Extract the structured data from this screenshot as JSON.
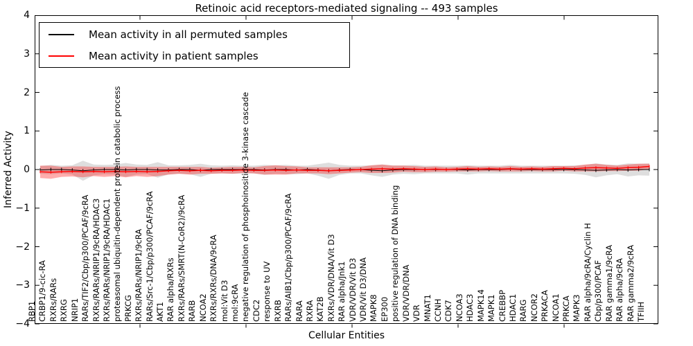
{
  "title": "Retinoic acid receptors-mediated signaling -- 493 samples",
  "axes": {
    "xlabel": "Cellular Entities",
    "ylabel": "Inferred Activity",
    "ylim": [
      -4,
      4
    ],
    "yticks": [
      4,
      3,
      2,
      1,
      0,
      -1,
      -2,
      -3,
      -4
    ]
  },
  "legend": {
    "items": [
      {
        "label": "Mean activity in all permuted samples",
        "color": "#000000"
      },
      {
        "label": "Mean activity in patient samples",
        "color": "#ff0000"
      }
    ]
  },
  "colors": {
    "permuted_line": "#000000",
    "patient_line": "#ff0000",
    "permuted_band": "#000000",
    "patient_band": "#ff0000",
    "frame": "#000000",
    "background": "#ffffff"
  },
  "chart_data": {
    "type": "line",
    "title": "Retinoic acid receptors-mediated signaling -- 493 samples",
    "xlabel": "Cellular Entities",
    "ylabel": "Inferred Activity",
    "ylim": [
      -4,
      4
    ],
    "grid": false,
    "legend_position": "upper left",
    "categories": [
      "RBP1",
      "CRBP1/9-cic-RA",
      "RXRs/RARs",
      "RXRG",
      "NRIP1",
      "RARs/TIF2/Cbp/p300/PCAF/9cRA",
      "RXRs/RARs/NRIP1/9cRA/HDAC3",
      "RXRs/RARs/NRIP1/9cRA/HDAC1",
      "proteasomal ubiquitin-dependent protein catabolic process",
      "PRKCG",
      "RXRs/RARs/NRIP1/9cRA",
      "RARs/Src-1/Cbp/p300/PCAF/9cRA",
      "AKT1",
      "RAR alpha/RXRs",
      "RXRs/RARs/SMRT(N-CoR2)/9cRA",
      "RARB",
      "NCOA2",
      "RXRs/RXRs/DNA/9cRA",
      "mol:Vit D3",
      "mol:9cRA",
      "negative regulation of phosphoinositide 3-kinase cascade",
      "CDC2",
      "response to UV",
      "RXRB",
      "RARs/AIB1/Cbp/p300/PCAF/9cRA",
      "RARA",
      "RXRA",
      "KAT2B",
      "RXRs/VDR/DNA/Vit D3",
      "RAR alpha/Jnk1",
      "VDR/VDR/Vit D3",
      "VDR/Vit D3/DNA",
      "MAPK8",
      "EP300",
      "positive regulation of DNA binding",
      "VDR/VDR/DNA",
      "VDR",
      "MNAT1",
      "CCNH",
      "CDK7",
      "NCOA3",
      "HDAC3",
      "MAPK14",
      "MAPK1",
      "CREBBP",
      "HDAC1",
      "RARG",
      "NCOR2",
      "PRKACA",
      "NCOA1",
      "PRKCA",
      "MAPK3",
      "RAR alpha/9cRA/Cyclin H",
      "Cbp/p300/PCAF",
      "RAR gamma1/9cRA",
      "RAR alpha/9cRA",
      "RAR gamma2/9cRA",
      "TFIIH"
    ],
    "series": [
      {
        "name": "Mean activity in all permuted samples",
        "color": "#000000",
        "mean": [
          -0.01,
          0,
          0,
          -0.01,
          -0.03,
          -0.01,
          0,
          0,
          -0.01,
          0,
          0,
          -0.01,
          -0.01,
          0,
          0,
          -0.02,
          0,
          0,
          0,
          0,
          0,
          -0.01,
          0,
          0,
          -0.01,
          0,
          -0.01,
          -0.03,
          -0.01,
          0,
          0,
          -0.02,
          -0.03,
          -0.01,
          0,
          0,
          0,
          0,
          0,
          0,
          -0.01,
          0,
          0,
          0,
          0.01,
          0,
          0,
          0,
          0,
          0,
          0,
          -0.01,
          -0.02,
          -0.01,
          0,
          -0.01,
          0,
          0
        ],
        "std": [
          0.1,
          0.12,
          0.1,
          0.12,
          0.26,
          0.14,
          0.12,
          0.13,
          0.18,
          0.13,
          0.12,
          0.2,
          0.12,
          0.11,
          0.12,
          0.17,
          0.11,
          0.1,
          0.11,
          0.1,
          0.1,
          0.13,
          0.11,
          0.12,
          0.11,
          0.1,
          0.15,
          0.21,
          0.13,
          0.1,
          0.1,
          0.13,
          0.16,
          0.12,
          0.11,
          0.12,
          0.1,
          0.1,
          0.1,
          0.1,
          0.12,
          0.1,
          0.1,
          0.1,
          0.11,
          0.1,
          0.1,
          0.1,
          0.1,
          0.1,
          0.11,
          0.13,
          0.18,
          0.14,
          0.12,
          0.17,
          0.15,
          0.16
        ]
      },
      {
        "name": "Mean activity in patient samples",
        "color": "#ff0000",
        "mean": [
          -0.06,
          -0.07,
          -0.06,
          -0.05,
          -0.06,
          -0.05,
          -0.06,
          -0.05,
          -0.06,
          -0.05,
          -0.06,
          -0.05,
          -0.03,
          -0.02,
          -0.03,
          -0.02,
          -0.03,
          -0.02,
          -0.02,
          -0.01,
          -0.02,
          -0.02,
          -0.01,
          -0.02,
          -0.01,
          -0.02,
          -0.02,
          -0.03,
          -0.02,
          -0.01,
          0.0,
          0.01,
          0.02,
          0.01,
          0.02,
          0.01,
          0.0,
          0.01,
          0.0,
          0.01,
          0.02,
          0.01,
          0.02,
          0.01,
          0.02,
          0.01,
          0.02,
          0.01,
          0.02,
          0.03,
          0.02,
          0.04,
          0.05,
          0.04,
          0.03,
          0.05,
          0.06,
          0.08
        ],
        "std": [
          0.16,
          0.17,
          0.13,
          0.13,
          0.14,
          0.12,
          0.13,
          0.12,
          0.14,
          0.12,
          0.13,
          0.12,
          0.1,
          0.09,
          0.1,
          0.09,
          0.08,
          0.08,
          0.09,
          0.08,
          0.08,
          0.11,
          0.12,
          0.11,
          0.09,
          0.08,
          0.08,
          0.09,
          0.08,
          0.07,
          0.07,
          0.1,
          0.11,
          0.09,
          0.08,
          0.08,
          0.07,
          0.07,
          0.06,
          0.06,
          0.07,
          0.06,
          0.06,
          0.06,
          0.07,
          0.06,
          0.06,
          0.06,
          0.07,
          0.06,
          0.07,
          0.09,
          0.1,
          0.08,
          0.07,
          0.08,
          0.09,
          0.07
        ]
      }
    ]
  }
}
